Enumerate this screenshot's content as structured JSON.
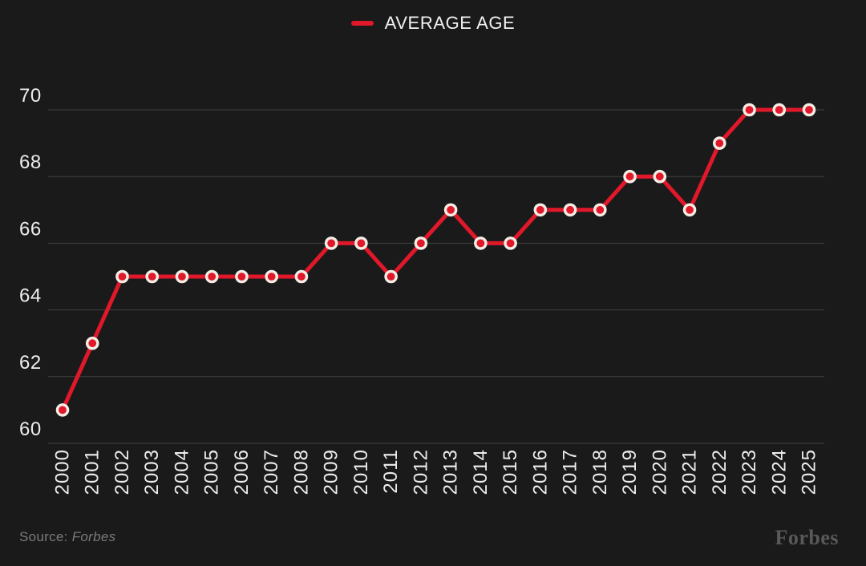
{
  "page": {
    "background": "#1a1a1a"
  },
  "legend": {
    "label": "AVERAGE AGE",
    "swatch_color": "#e0182a"
  },
  "chart_data": {
    "type": "line",
    "title": "",
    "xlabel": "",
    "ylabel": "",
    "x": [
      2000,
      2001,
      2002,
      2003,
      2004,
      2005,
      2006,
      2007,
      2008,
      2009,
      2010,
      2011,
      2012,
      2013,
      2014,
      2015,
      2016,
      2017,
      2018,
      2019,
      2020,
      2021,
      2022,
      2023,
      2024,
      2025
    ],
    "series": [
      {
        "name": "AVERAGE AGE",
        "values": [
          61,
          63,
          65,
          65,
          65,
          65,
          65,
          65,
          65,
          66,
          66,
          65,
          66,
          67,
          66,
          66,
          67,
          67,
          67,
          68,
          68,
          67,
          69,
          70,
          70,
          70
        ],
        "color": "#e0182a"
      }
    ],
    "ylim": [
      60,
      70
    ],
    "yticks": [
      60,
      62,
      64,
      66,
      68,
      70
    ],
    "grid": "horizontal-only",
    "gridline_color": "#414141",
    "tick_label_color": "#ededed",
    "marker": {
      "shape": "circle",
      "fill": "#e0182a",
      "ring_color": "#f3ede5"
    },
    "legend_position": "top-center",
    "x_tick_rotation": -90
  },
  "footer": {
    "source_prefix": "Source: ",
    "source_name": "Forbes",
    "brand_wordmark": "Forbes"
  }
}
